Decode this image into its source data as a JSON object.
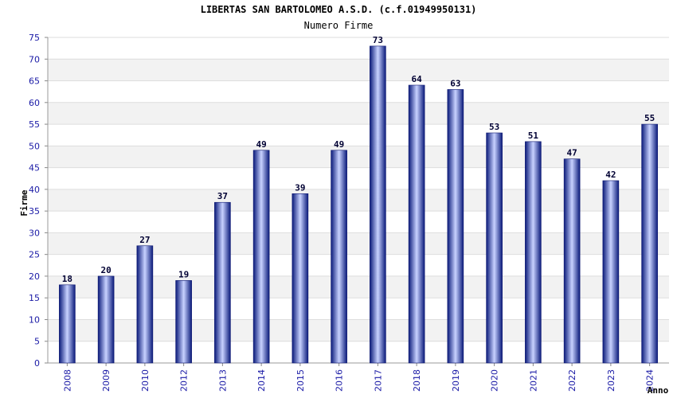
{
  "chart_data": {
    "type": "bar",
    "title": "LIBERTAS SAN BARTOLOMEO A.S.D. (c.f.01949950131)",
    "subtitle": "Numero Firme",
    "xlabel": "Anno",
    "ylabel": "Firme",
    "ylim": [
      0,
      75
    ],
    "ytick_step": 5,
    "grid": true,
    "categories": [
      "2008",
      "2009",
      "2010",
      "2012",
      "2013",
      "2014",
      "2015",
      "2016",
      "2017",
      "2018",
      "2019",
      "2020",
      "2021",
      "2022",
      "2023",
      "2024"
    ],
    "values": [
      18,
      20,
      27,
      19,
      37,
      49,
      39,
      49,
      73,
      64,
      63,
      53,
      51,
      47,
      42,
      55
    ]
  },
  "colors": {
    "bar_dark": "#0a1a7a",
    "bar_light": "#c8d2ff",
    "band": "#f2f2f2",
    "tick": "#1a1aa6"
  }
}
